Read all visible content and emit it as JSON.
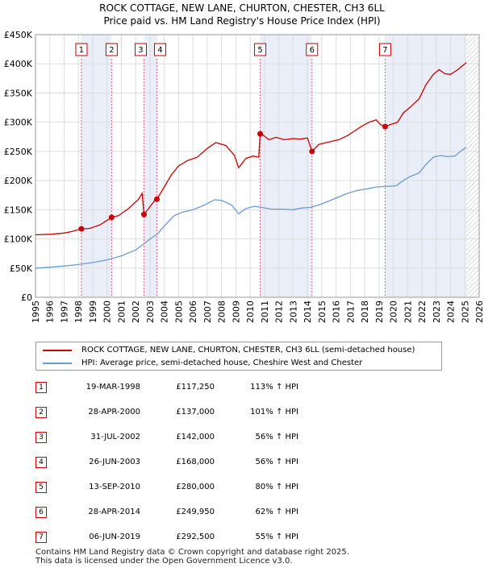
{
  "chart_data": {
    "type": "line",
    "title": "ROCK COTTAGE, NEW LANE, CHURTON, CHESTER, CH3 6LL",
    "subtitle": "Price paid vs. HM Land Registry's House Price Index (HPI)",
    "xlim": [
      1995,
      2026
    ],
    "ylim": [
      0,
      450000
    ],
    "x_ticks": [
      "1995",
      "1996",
      "1997",
      "1998",
      "1999",
      "2000",
      "2001",
      "2002",
      "2003",
      "2004",
      "2005",
      "2006",
      "2007",
      "2008",
      "2009",
      "2010",
      "2011",
      "2012",
      "2013",
      "2014",
      "2015",
      "2016",
      "2017",
      "2018",
      "2019",
      "2020",
      "2021",
      "2022",
      "2023",
      "2024",
      "2025",
      "2026"
    ],
    "y_ticks": [
      {
        "value": 0,
        "label": "£0"
      },
      {
        "value": 50000,
        "label": "£50K"
      },
      {
        "value": 100000,
        "label": "£100K"
      },
      {
        "value": 150000,
        "label": "£150K"
      },
      {
        "value": 200000,
        "label": "£200K"
      },
      {
        "value": 250000,
        "label": "£250K"
      },
      {
        "value": 300000,
        "label": "£300K"
      },
      {
        "value": 350000,
        "label": "£350K"
      },
      {
        "value": 400000,
        "label": "£400K"
      },
      {
        "value": 450000,
        "label": "£450K"
      }
    ],
    "grid": true,
    "shaded_periods": [
      [
        1998.2,
        2000.3
      ],
      [
        2002.6,
        2003.5
      ],
      [
        2010.7,
        2014.3
      ],
      [
        2019.4,
        2025.1
      ]
    ],
    "hatched_future_from": 2025.1,
    "series": [
      {
        "name": "ROCK COTTAGE, NEW LANE, CHURTON, CHESTER, CH3 6LL (semi-detached house)",
        "color": "#cc0000",
        "points": [
          [
            1995.0,
            107000
          ],
          [
            1996.0,
            108000
          ],
          [
            1997.0,
            110000
          ],
          [
            1997.6,
            113000
          ],
          [
            1998.2,
            117250
          ],
          [
            1998.8,
            118000
          ],
          [
            1999.5,
            124000
          ],
          [
            2000.32,
            137000
          ],
          [
            2000.8,
            140000
          ],
          [
            2001.5,
            152000
          ],
          [
            2002.2,
            168000
          ],
          [
            2002.45,
            178000
          ],
          [
            2002.58,
            142000
          ],
          [
            2002.9,
            152000
          ],
          [
            2003.3,
            165000
          ],
          [
            2003.48,
            168000
          ],
          [
            2003.9,
            185000
          ],
          [
            2004.5,
            210000
          ],
          [
            2005.0,
            225000
          ],
          [
            2005.6,
            234000
          ],
          [
            2006.3,
            240000
          ],
          [
            2007.0,
            255000
          ],
          [
            2007.6,
            265000
          ],
          [
            2008.3,
            260000
          ],
          [
            2008.9,
            243000
          ],
          [
            2009.2,
            222000
          ],
          [
            2009.7,
            238000
          ],
          [
            2010.2,
            242000
          ],
          [
            2010.6,
            240000
          ],
          [
            2010.7,
            280000
          ],
          [
            2010.9,
            278000
          ],
          [
            2011.3,
            270000
          ],
          [
            2011.8,
            274000
          ],
          [
            2012.4,
            270000
          ],
          [
            2013.0,
            272000
          ],
          [
            2013.5,
            271000
          ],
          [
            2014.0,
            273000
          ],
          [
            2014.32,
            249950
          ],
          [
            2014.8,
            262000
          ],
          [
            2015.5,
            266000
          ],
          [
            2016.2,
            270000
          ],
          [
            2016.8,
            277000
          ],
          [
            2017.3,
            285000
          ],
          [
            2017.8,
            293000
          ],
          [
            2018.3,
            300000
          ],
          [
            2018.8,
            304000
          ],
          [
            2019.1,
            296000
          ],
          [
            2019.43,
            292500
          ],
          [
            2019.8,
            296000
          ],
          [
            2020.3,
            300000
          ],
          [
            2020.7,
            316000
          ],
          [
            2021.2,
            326000
          ],
          [
            2021.8,
            340000
          ],
          [
            2022.3,
            365000
          ],
          [
            2022.8,
            382000
          ],
          [
            2023.2,
            390000
          ],
          [
            2023.6,
            383000
          ],
          [
            2024.0,
            382000
          ],
          [
            2024.5,
            390000
          ],
          [
            2025.0,
            400000
          ],
          [
            2025.1,
            402000
          ]
        ]
      },
      {
        "name": "HPI: Average price, semi-detached house, Cheshire West and Chester",
        "color": "#6a9bd1",
        "points": [
          [
            1995.0,
            50000
          ],
          [
            1996.0,
            51500
          ],
          [
            1997.0,
            53500
          ],
          [
            1998.0,
            56000
          ],
          [
            1999.0,
            59500
          ],
          [
            2000.0,
            64000
          ],
          [
            2001.0,
            71000
          ],
          [
            2002.0,
            81000
          ],
          [
            2002.6,
            92000
          ],
          [
            2003.0,
            100000
          ],
          [
            2003.5,
            108000
          ],
          [
            2004.0,
            122000
          ],
          [
            2004.7,
            140000
          ],
          [
            2005.3,
            146000
          ],
          [
            2006.0,
            150000
          ],
          [
            2006.8,
            158000
          ],
          [
            2007.5,
            167000
          ],
          [
            2008.0,
            166000
          ],
          [
            2008.7,
            158000
          ],
          [
            2009.2,
            143000
          ],
          [
            2009.7,
            152000
          ],
          [
            2010.3,
            156000
          ],
          [
            2010.8,
            154000
          ],
          [
            2011.5,
            151000
          ],
          [
            2012.2,
            151000
          ],
          [
            2013.0,
            150000
          ],
          [
            2013.6,
            153000
          ],
          [
            2014.2,
            154000
          ],
          [
            2014.8,
            158000
          ],
          [
            2015.5,
            165000
          ],
          [
            2016.2,
            172000
          ],
          [
            2016.8,
            178000
          ],
          [
            2017.5,
            183000
          ],
          [
            2018.2,
            186000
          ],
          [
            2018.8,
            189000
          ],
          [
            2019.5,
            190000
          ],
          [
            2020.2,
            191000
          ],
          [
            2020.7,
            200000
          ],
          [
            2021.2,
            207000
          ],
          [
            2021.8,
            213000
          ],
          [
            2022.3,
            228000
          ],
          [
            2022.8,
            240000
          ],
          [
            2023.3,
            243000
          ],
          [
            2023.8,
            241000
          ],
          [
            2024.3,
            242000
          ],
          [
            2024.8,
            252000
          ],
          [
            2025.1,
            257000
          ]
        ]
      }
    ],
    "sales": [
      {
        "n": "1",
        "x": 1998.21,
        "y": 117250
      },
      {
        "n": "2",
        "x": 2000.32,
        "y": 137000
      },
      {
        "n": "3",
        "x": 2002.58,
        "y": 142000
      },
      {
        "n": "4",
        "x": 2003.48,
        "y": 168000
      },
      {
        "n": "5",
        "x": 2010.7,
        "y": 280000
      },
      {
        "n": "6",
        "x": 2014.32,
        "y": 249950
      },
      {
        "n": "7",
        "x": 2019.43,
        "y": 292500
      }
    ]
  },
  "legend": {
    "property": "ROCK COTTAGE, NEW LANE, CHURTON, CHESTER, CH3 6LL (semi-detached house)",
    "hpi": "HPI: Average price, semi-detached house, Cheshire West and Chester",
    "property_color": "#cc0000",
    "hpi_color": "#6a9bd1"
  },
  "transactions": [
    {
      "n": "1",
      "date": "19-MAR-1998",
      "price": "£117,250",
      "hpi": "113% ↑ HPI"
    },
    {
      "n": "2",
      "date": "28-APR-2000",
      "price": "£137,000",
      "hpi": "101% ↑ HPI"
    },
    {
      "n": "3",
      "date": "31-JUL-2002",
      "price": "£142,000",
      "hpi": "56% ↑ HPI"
    },
    {
      "n": "4",
      "date": "26-JUN-2003",
      "price": "£168,000",
      "hpi": "56% ↑ HPI"
    },
    {
      "n": "5",
      "date": "13-SEP-2010",
      "price": "£280,000",
      "hpi": "80% ↑ HPI"
    },
    {
      "n": "6",
      "date": "28-APR-2014",
      "price": "£249,950",
      "hpi": "62% ↑ HPI"
    },
    {
      "n": "7",
      "date": "06-JUN-2019",
      "price": "£292,500",
      "hpi": "55% ↑ HPI"
    }
  ],
  "footer": {
    "line1": "Contains HM Land Registry data © Crown copyright and database right 2025.",
    "line2": "This data is licensed under the Open Government Licence v3.0."
  }
}
